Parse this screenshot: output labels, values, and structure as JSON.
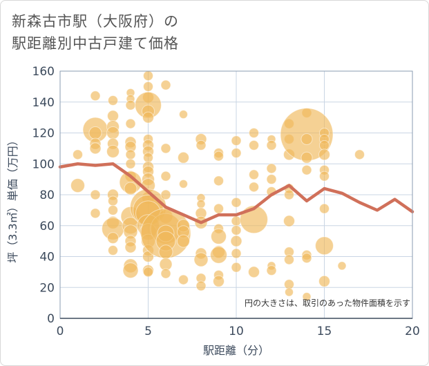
{
  "chart_data": {
    "type": "scatter",
    "title_line1": "新森古市駅（大阪府）の",
    "title_line2": "駅距離別中古戸建て価格",
    "xlabel": "駅距離（分）",
    "ylabel": "坪（3.3㎡）単価（万円）",
    "note": "円の大きさは、取引のあった物件面積を示す",
    "xlim": [
      0,
      20
    ],
    "ylim": [
      0,
      160
    ],
    "xticks": [
      "0",
      "5",
      "10",
      "15",
      "20"
    ],
    "yticks": [
      "0",
      "20",
      "40",
      "60",
      "80",
      "100",
      "120",
      "140",
      "160"
    ],
    "colors": {
      "bubble": "#f0b85a",
      "line": "#d0705a",
      "grid": "#c9d5e4"
    },
    "line": {
      "x": [
        0,
        1,
        2,
        3,
        4,
        5,
        6,
        7,
        8,
        9,
        10,
        11,
        12,
        13,
        14,
        15,
        16,
        17,
        18,
        19,
        20
      ],
      "y": [
        98,
        100,
        99,
        100,
        92,
        82,
        72,
        67,
        62,
        67,
        67,
        71,
        80,
        86,
        76,
        84,
        81,
        75,
        70,
        77,
        69
      ]
    },
    "bubbles": [
      {
        "x": 1,
        "y": 106,
        "r": 7
      },
      {
        "x": 1,
        "y": 86,
        "r": 10
      },
      {
        "x": 2,
        "y": 144,
        "r": 7
      },
      {
        "x": 2,
        "y": 122,
        "r": 18
      },
      {
        "x": 2,
        "y": 120,
        "r": 9
      },
      {
        "x": 2,
        "y": 113,
        "r": 8
      },
      {
        "x": 2,
        "y": 110,
        "r": 8
      },
      {
        "x": 2,
        "y": 80,
        "r": 7
      },
      {
        "x": 2,
        "y": 68,
        "r": 7
      },
      {
        "x": 3,
        "y": 141,
        "r": 7
      },
      {
        "x": 3,
        "y": 131,
        "r": 8
      },
      {
        "x": 3,
        "y": 124,
        "r": 9
      },
      {
        "x": 3,
        "y": 120,
        "r": 9
      },
      {
        "x": 3,
        "y": 113,
        "r": 8
      },
      {
        "x": 3,
        "y": 108,
        "r": 9
      },
      {
        "x": 3,
        "y": 80,
        "r": 8
      },
      {
        "x": 3,
        "y": 76,
        "r": 7
      },
      {
        "x": 3,
        "y": 70,
        "r": 7
      },
      {
        "x": 3,
        "y": 62,
        "r": 9
      },
      {
        "x": 3,
        "y": 58,
        "r": 16
      },
      {
        "x": 3,
        "y": 52,
        "r": 8
      },
      {
        "x": 3,
        "y": 44,
        "r": 7
      },
      {
        "x": 4,
        "y": 146,
        "r": 6
      },
      {
        "x": 4,
        "y": 142,
        "r": 6
      },
      {
        "x": 4,
        "y": 138,
        "r": 7
      },
      {
        "x": 4,
        "y": 126,
        "r": 7
      },
      {
        "x": 4,
        "y": 114,
        "r": 8
      },
      {
        "x": 4,
        "y": 111,
        "r": 8
      },
      {
        "x": 4,
        "y": 106,
        "r": 7
      },
      {
        "x": 4,
        "y": 100,
        "r": 7
      },
      {
        "x": 4,
        "y": 92,
        "r": 8
      },
      {
        "x": 4,
        "y": 88,
        "r": 16
      },
      {
        "x": 4,
        "y": 84,
        "r": 9
      },
      {
        "x": 4,
        "y": 66,
        "r": 14
      },
      {
        "x": 4,
        "y": 60,
        "r": 12
      },
      {
        "x": 4,
        "y": 56,
        "r": 10
      },
      {
        "x": 4,
        "y": 50,
        "r": 8
      },
      {
        "x": 4,
        "y": 46,
        "r": 8
      },
      {
        "x": 4,
        "y": 34,
        "r": 10
      },
      {
        "x": 4,
        "y": 31,
        "r": 11
      },
      {
        "x": 5,
        "y": 157,
        "r": 7
      },
      {
        "x": 5,
        "y": 150,
        "r": 7
      },
      {
        "x": 5,
        "y": 143,
        "r": 8
      },
      {
        "x": 5,
        "y": 138,
        "r": 19
      },
      {
        "x": 5,
        "y": 134,
        "r": 9
      },
      {
        "x": 5,
        "y": 130,
        "r": 8
      },
      {
        "x": 5,
        "y": 116,
        "r": 7
      },
      {
        "x": 5,
        "y": 112,
        "r": 8
      },
      {
        "x": 5,
        "y": 108,
        "r": 8
      },
      {
        "x": 5,
        "y": 104,
        "r": 7
      },
      {
        "x": 5,
        "y": 98,
        "r": 8
      },
      {
        "x": 5,
        "y": 95,
        "r": 8
      },
      {
        "x": 5,
        "y": 90,
        "r": 9
      },
      {
        "x": 5,
        "y": 86,
        "r": 10
      },
      {
        "x": 5,
        "y": 78,
        "r": 9
      },
      {
        "x": 5,
        "y": 72,
        "r": 26
      },
      {
        "x": 5,
        "y": 70,
        "r": 22
      },
      {
        "x": 5,
        "y": 68,
        "r": 18
      },
      {
        "x": 5,
        "y": 60,
        "r": 16
      },
      {
        "x": 5,
        "y": 56,
        "r": 12
      },
      {
        "x": 5,
        "y": 50,
        "r": 10
      },
      {
        "x": 5,
        "y": 44,
        "r": 8
      },
      {
        "x": 5,
        "y": 40,
        "r": 8
      },
      {
        "x": 5,
        "y": 31,
        "r": 8
      },
      {
        "x": 5,
        "y": 30,
        "r": 7
      },
      {
        "x": 6,
        "y": 151,
        "r": 7
      },
      {
        "x": 6,
        "y": 110,
        "r": 7
      },
      {
        "x": 6,
        "y": 92,
        "r": 7
      },
      {
        "x": 6,
        "y": 80,
        "r": 7
      },
      {
        "x": 6,
        "y": 66,
        "r": 10
      },
      {
        "x": 6,
        "y": 58,
        "r": 22
      },
      {
        "x": 6,
        "y": 55,
        "r": 36
      },
      {
        "x": 6,
        "y": 55,
        "r": 12
      },
      {
        "x": 6,
        "y": 50,
        "r": 14
      },
      {
        "x": 6,
        "y": 43,
        "r": 10
      },
      {
        "x": 6,
        "y": 35,
        "r": 9
      },
      {
        "x": 6,
        "y": 29,
        "r": 7
      },
      {
        "x": 7,
        "y": 132,
        "r": 6
      },
      {
        "x": 7,
        "y": 104,
        "r": 8
      },
      {
        "x": 7,
        "y": 87,
        "r": 6
      },
      {
        "x": 7,
        "y": 60,
        "r": 9
      },
      {
        "x": 7,
        "y": 56,
        "r": 9
      },
      {
        "x": 7,
        "y": 50,
        "r": 9
      },
      {
        "x": 7,
        "y": 25,
        "r": 7
      },
      {
        "x": 8,
        "y": 116,
        "r": 8
      },
      {
        "x": 8,
        "y": 112,
        "r": 7
      },
      {
        "x": 8,
        "y": 78,
        "r": 6
      },
      {
        "x": 8,
        "y": 74,
        "r": 6
      },
      {
        "x": 8,
        "y": 68,
        "r": 8
      },
      {
        "x": 8,
        "y": 62,
        "r": 9
      },
      {
        "x": 8,
        "y": 42,
        "r": 8
      },
      {
        "x": 8,
        "y": 38,
        "r": 10
      },
      {
        "x": 8,
        "y": 26,
        "r": 7
      },
      {
        "x": 8,
        "y": 21,
        "r": 7
      },
      {
        "x": 9,
        "y": 107,
        "r": 7
      },
      {
        "x": 9,
        "y": 105,
        "r": 7
      },
      {
        "x": 9,
        "y": 89,
        "r": 7
      },
      {
        "x": 9,
        "y": 71,
        "r": 7
      },
      {
        "x": 9,
        "y": 58,
        "r": 7
      },
      {
        "x": 9,
        "y": 53,
        "r": 11
      },
      {
        "x": 9,
        "y": 43,
        "r": 9
      },
      {
        "x": 9,
        "y": 41,
        "r": 12
      },
      {
        "x": 9,
        "y": 28,
        "r": 7
      },
      {
        "x": 9,
        "y": 24,
        "r": 8
      },
      {
        "x": 10,
        "y": 115,
        "r": 7
      },
      {
        "x": 10,
        "y": 107,
        "r": 7
      },
      {
        "x": 10,
        "y": 75,
        "r": 7
      },
      {
        "x": 10,
        "y": 63,
        "r": 7
      },
      {
        "x": 10,
        "y": 57,
        "r": 7
      },
      {
        "x": 10,
        "y": 50,
        "r": 8
      },
      {
        "x": 10,
        "y": 42,
        "r": 7
      },
      {
        "x": 10,
        "y": 33,
        "r": 7
      },
      {
        "x": 11,
        "y": 120,
        "r": 7
      },
      {
        "x": 11,
        "y": 112,
        "r": 7
      },
      {
        "x": 11,
        "y": 93,
        "r": 7
      },
      {
        "x": 11,
        "y": 85,
        "r": 7
      },
      {
        "x": 11,
        "y": 64,
        "r": 20
      },
      {
        "x": 11,
        "y": 30,
        "r": 8
      },
      {
        "x": 12,
        "y": 116,
        "r": 6
      },
      {
        "x": 12,
        "y": 112,
        "r": 7
      },
      {
        "x": 12,
        "y": 97,
        "r": 7
      },
      {
        "x": 12,
        "y": 90,
        "r": 7
      },
      {
        "x": 12,
        "y": 82,
        "r": 7
      },
      {
        "x": 12,
        "y": 34,
        "r": 6
      },
      {
        "x": 12,
        "y": 31,
        "r": 7
      },
      {
        "x": 13,
        "y": 126,
        "r": 7
      },
      {
        "x": 13,
        "y": 116,
        "r": 7
      },
      {
        "x": 13,
        "y": 106,
        "r": 8
      },
      {
        "x": 13,
        "y": 84,
        "r": 7
      },
      {
        "x": 13,
        "y": 80,
        "r": 7
      },
      {
        "x": 13,
        "y": 63,
        "r": 8
      },
      {
        "x": 13,
        "y": 43,
        "r": 7
      },
      {
        "x": 13,
        "y": 38,
        "r": 7
      },
      {
        "x": 13,
        "y": 22,
        "r": 7
      },
      {
        "x": 13,
        "y": 17,
        "r": 6
      },
      {
        "x": 14,
        "y": 133,
        "r": 7
      },
      {
        "x": 14,
        "y": 119,
        "r": 38
      },
      {
        "x": 14,
        "y": 116,
        "r": 8
      },
      {
        "x": 14,
        "y": 104,
        "r": 8
      },
      {
        "x": 14,
        "y": 96,
        "r": 7
      },
      {
        "x": 14,
        "y": 41,
        "r": 7
      },
      {
        "x": 14,
        "y": 39,
        "r": 7
      },
      {
        "x": 14,
        "y": 14,
        "r": 6
      },
      {
        "x": 15,
        "y": 120,
        "r": 7
      },
      {
        "x": 15,
        "y": 116,
        "r": 7
      },
      {
        "x": 15,
        "y": 112,
        "r": 7
      },
      {
        "x": 15,
        "y": 106,
        "r": 8
      },
      {
        "x": 15,
        "y": 96,
        "r": 7
      },
      {
        "x": 15,
        "y": 92,
        "r": 7
      },
      {
        "x": 15,
        "y": 71,
        "r": 7
      },
      {
        "x": 15,
        "y": 47,
        "r": 13
      },
      {
        "x": 15,
        "y": 24,
        "r": 8
      },
      {
        "x": 16,
        "y": 34,
        "r": 6
      },
      {
        "x": 17,
        "y": 106,
        "r": 7
      }
    ]
  }
}
